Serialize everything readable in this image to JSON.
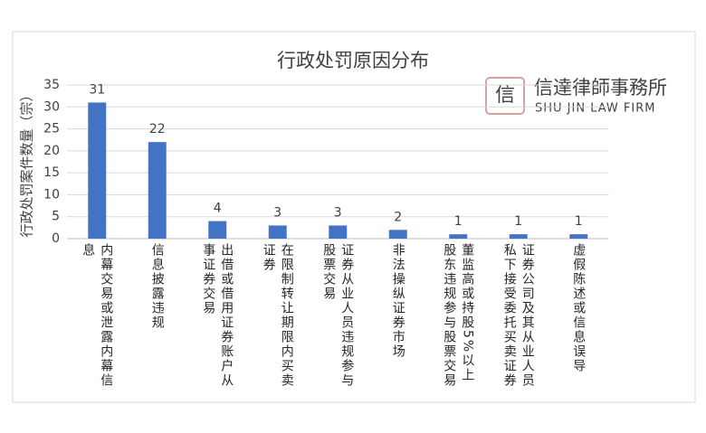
{
  "chart_data": {
    "type": "bar",
    "title": "行政处罚原因分布",
    "y_label": "行政处罚案件数量（宗）",
    "categories": [
      "内幕交易或泄露内幕信息",
      "信息披露违规",
      "出借或借用证券账户从事证券交易",
      "在限制转让期限内买卖证券",
      "证券从业人员违规参与股票交易",
      "非法操纵证券市场",
      "董监高或持股5%以上股东违规参与股票交易",
      "证券公司及其从业人员私下接受委托买卖证券",
      "虚假陈述或信息误导"
    ],
    "values": [
      31,
      22,
      4,
      3,
      3,
      2,
      1,
      1,
      1
    ],
    "color": "#4472c4",
    "ylim": [
      0,
      35
    ],
    "yticks": [
      0,
      5,
      10,
      15,
      20,
      25,
      30,
      35
    ],
    "grid": true
  },
  "watermark": {
    "name": "信達律師事務所",
    "name_en": "SHU JIN LAW FIRM"
  }
}
